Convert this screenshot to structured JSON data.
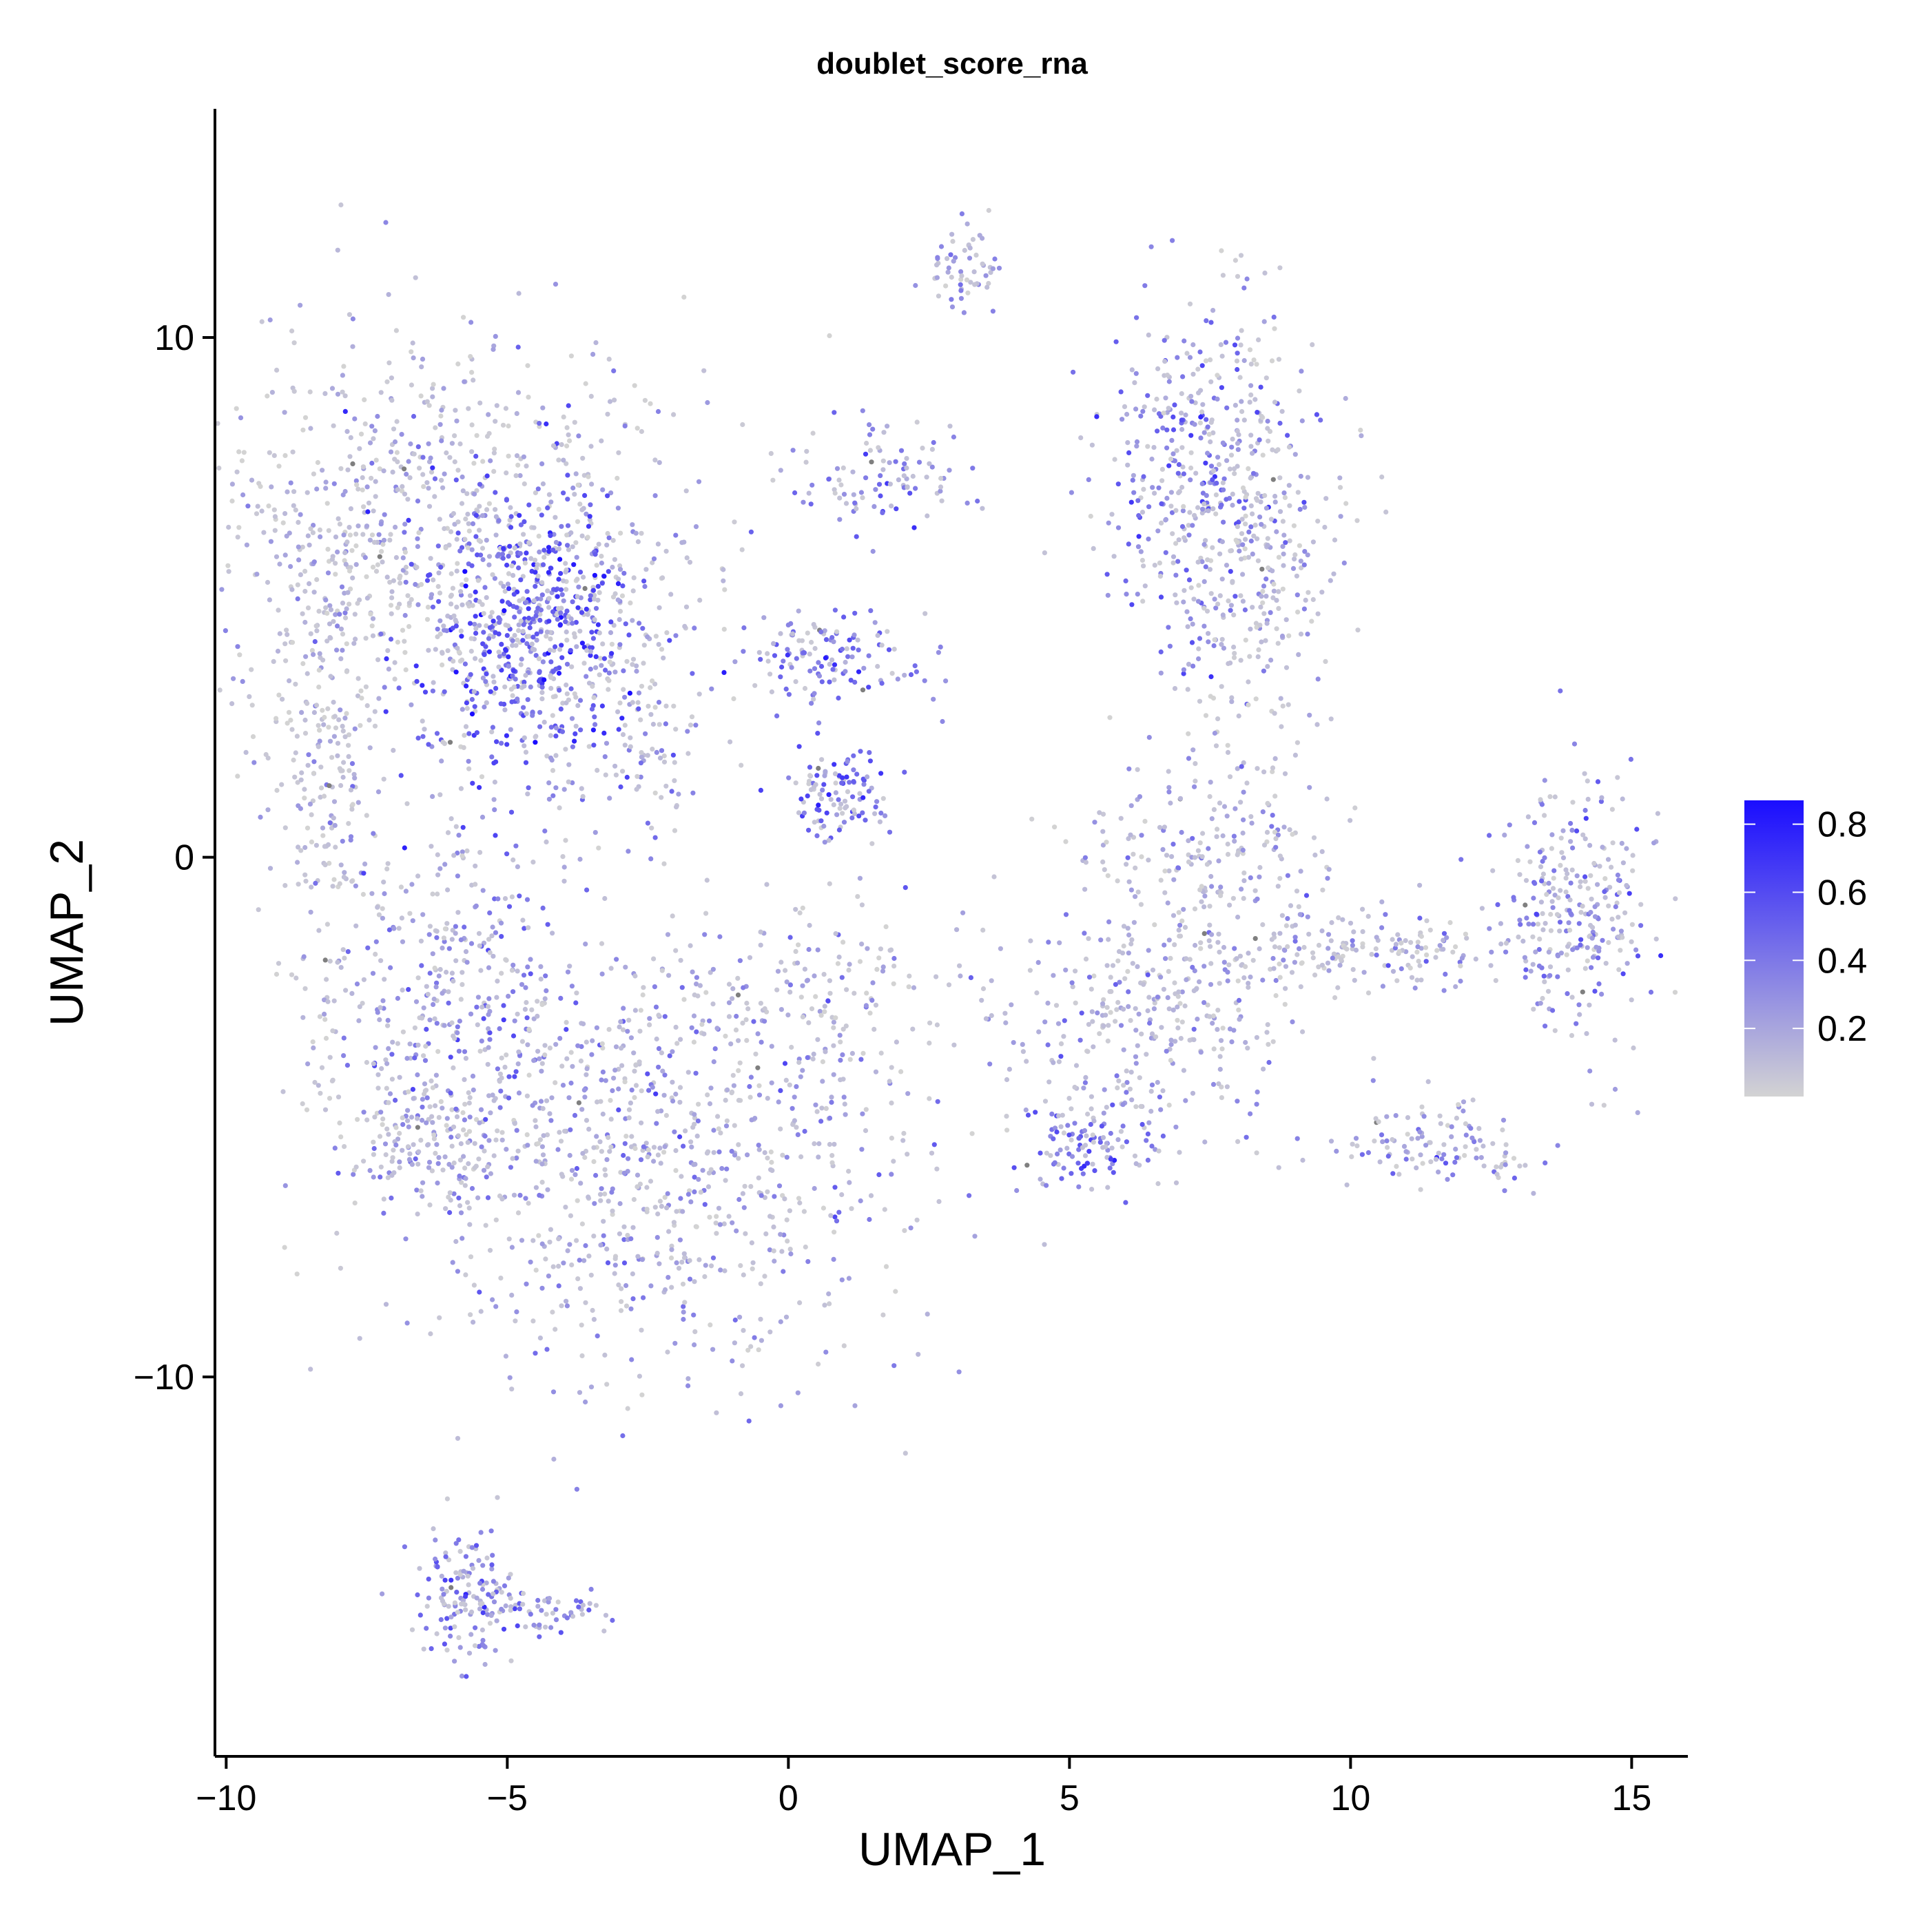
{
  "chart_data": {
    "type": "scatter",
    "title": "doublet_score_rna",
    "xlabel": "UMAP_1",
    "ylabel": "UMAP_2",
    "xlim": [
      -10.2,
      16.0
    ],
    "ylim": [
      -17.3,
      14.4
    ],
    "x_ticks": [
      -10,
      -5,
      0,
      5,
      10,
      15
    ],
    "x_tick_labels": [
      "−10",
      "−5",
      "0",
      "5",
      "10",
      "15"
    ],
    "y_ticks": [
      -10,
      0,
      10
    ],
    "y_tick_labels": [
      "−10",
      "0",
      "10"
    ],
    "grid": false,
    "legend": {
      "placement": "right",
      "type": "colorbar",
      "min": 0.0,
      "max": 0.87,
      "ticks": [
        0.2,
        0.4,
        0.6,
        0.8
      ],
      "tick_labels": [
        "0.2",
        "0.4",
        "0.6",
        "0.8"
      ],
      "low_color": "#d3d3d3",
      "high_color": "#1a0dff"
    },
    "point_colors": {
      "low": "#d3d3d3",
      "high": "#1a0dff",
      "na": "#7f7f7f"
    },
    "clusters": [
      {
        "cx": -6.2,
        "cy": 6.2,
        "sx": 2.3,
        "sy": 2.0,
        "score": 0.12,
        "n": 700
      },
      {
        "cx": -4.6,
        "cy": 4.5,
        "sx": 1.0,
        "sy": 1.5,
        "score": 0.52,
        "n": 650
      },
      {
        "cx": -8.2,
        "cy": 2.0,
        "sx": 0.5,
        "sy": 3.0,
        "score": 0.1,
        "n": 300
      },
      {
        "cx": -6.0,
        "cy": -2.5,
        "sx": 1.1,
        "sy": 1.8,
        "score": 0.3,
        "n": 320
      },
      {
        "cx": -2.5,
        "cy": -5.5,
        "sx": 2.3,
        "sy": 2.2,
        "score": 0.22,
        "n": 950
      },
      {
        "cx": -6.5,
        "cy": -5.5,
        "sx": 0.6,
        "sy": 0.6,
        "score": 0.2,
        "n": 120
      },
      {
        "cx": -2.5,
        "cy": 3.0,
        "sx": 0.7,
        "sy": 1.2,
        "score": 0.32,
        "n": 120
      },
      {
        "cx": 0.9,
        "cy": 1.2,
        "sx": 0.45,
        "sy": 0.4,
        "score": 0.45,
        "n": 110
      },
      {
        "cx": 0.7,
        "cy": 3.8,
        "sx": 0.9,
        "sy": 0.45,
        "score": 0.4,
        "n": 130
      },
      {
        "cx": 1.7,
        "cy": 7.3,
        "sx": 0.8,
        "sy": 0.5,
        "score": 0.35,
        "n": 100
      },
      {
        "cx": 3.2,
        "cy": 11.4,
        "sx": 0.4,
        "sy": 0.5,
        "score": 0.22,
        "n": 60
      },
      {
        "cx": 7.2,
        "cy": 7.2,
        "sx": 0.9,
        "sy": 1.7,
        "score": 0.35,
        "n": 380
      },
      {
        "cx": 8.4,
        "cy": 5.8,
        "sx": 0.7,
        "sy": 2.0,
        "score": 0.1,
        "n": 260
      },
      {
        "cx": 7.3,
        "cy": 0.0,
        "sx": 1.2,
        "sy": 1.2,
        "score": 0.18,
        "n": 230
      },
      {
        "cx": 6.5,
        "cy": -3.2,
        "sx": 1.3,
        "sy": 1.0,
        "score": 0.18,
        "n": 280
      },
      {
        "cx": 10.5,
        "cy": -1.8,
        "sx": 1.8,
        "sy": 0.4,
        "score": 0.15,
        "n": 190
      },
      {
        "cx": 14.0,
        "cy": -1.0,
        "sx": 0.7,
        "sy": 1.3,
        "score": 0.3,
        "n": 260
      },
      {
        "cx": 11.5,
        "cy": -5.5,
        "sx": 1.0,
        "sy": 0.4,
        "score": 0.25,
        "n": 120
      },
      {
        "cx": 5.3,
        "cy": -5.5,
        "sx": 0.6,
        "sy": 0.5,
        "score": 0.4,
        "n": 120
      },
      {
        "cx": -5.8,
        "cy": -14.2,
        "sx": 0.5,
        "sy": 0.6,
        "score": 0.35,
        "n": 140
      },
      {
        "cx": -4.3,
        "cy": -14.5,
        "sx": 0.6,
        "sy": 0.2,
        "score": 0.3,
        "n": 60
      },
      {
        "cx": 1.0,
        "cy": -2.5,
        "sx": 1.0,
        "sy": 1.0,
        "score": 0.15,
        "n": 100
      }
    ]
  }
}
